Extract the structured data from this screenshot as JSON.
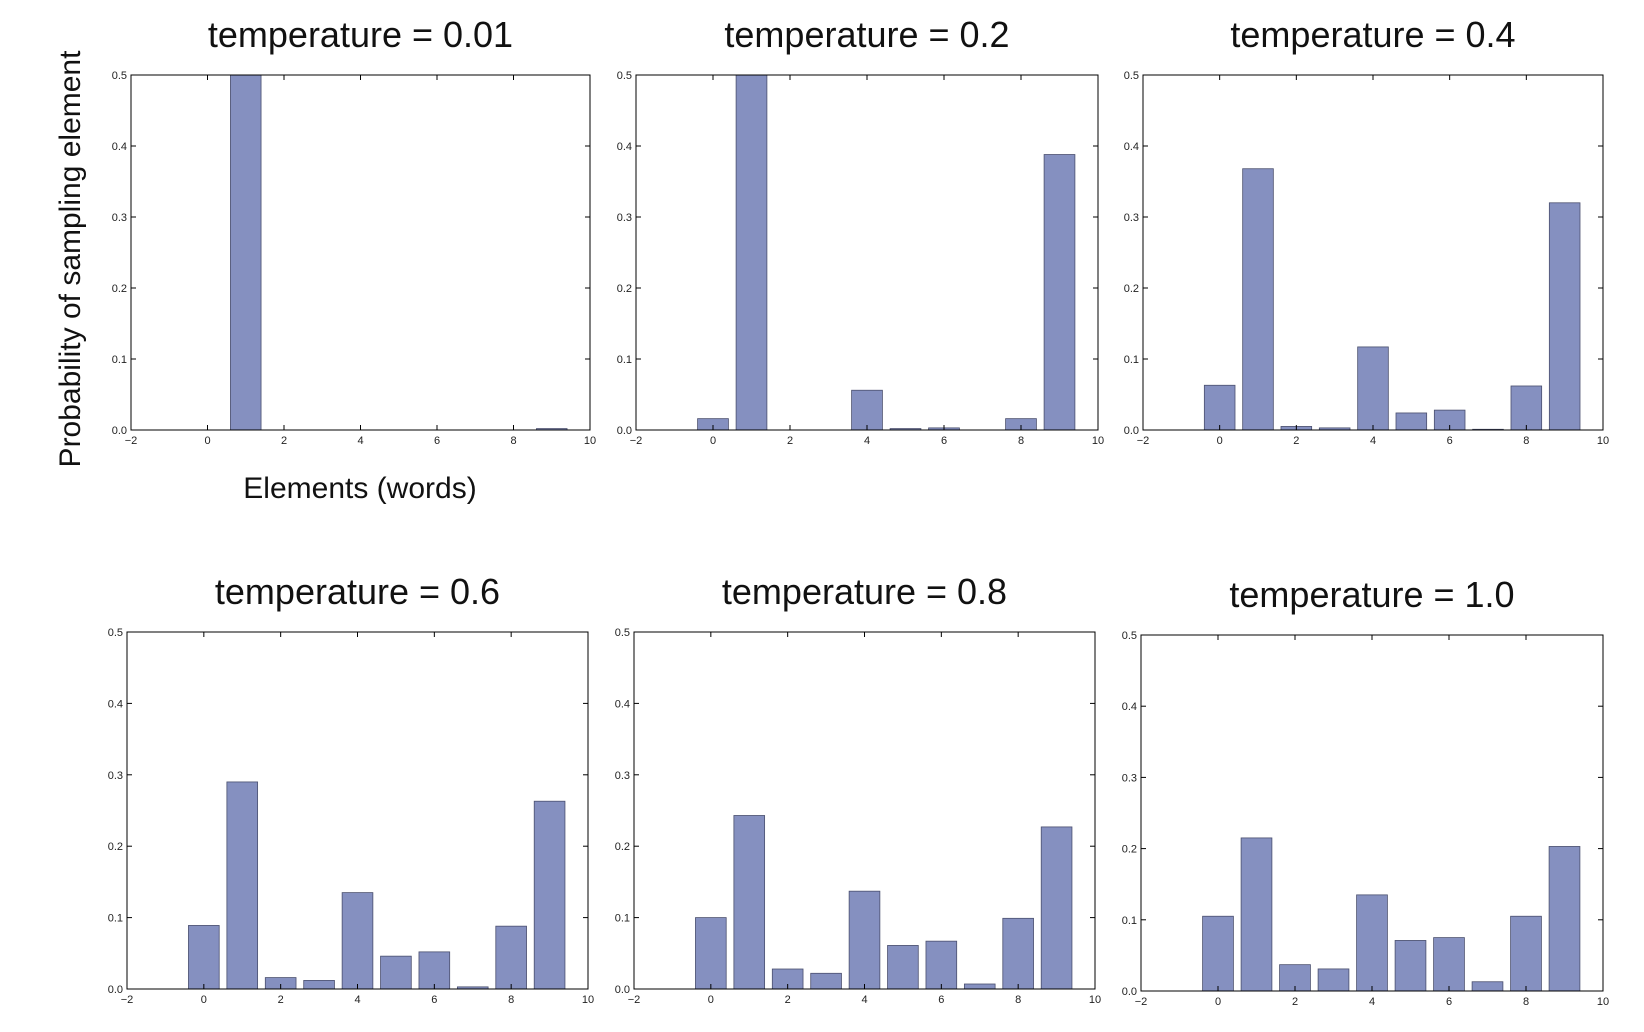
{
  "figure": {
    "ylabel": "Probability of sampling element",
    "xlabel": "Elements (words)",
    "bar_color": "#8590c0"
  },
  "chart_data": [
    {
      "type": "bar",
      "title": "temperature = 0.01",
      "x": [
        0,
        1,
        2,
        3,
        4,
        5,
        6,
        7,
        8,
        9
      ],
      "values": [
        0.0,
        0.5,
        0.0,
        0.0,
        0.0,
        0.0,
        0.0,
        0.0,
        0.0,
        0.002
      ],
      "xlim": [
        -2,
        10
      ],
      "ylim": [
        0,
        0.5
      ],
      "xticks": [
        "−2",
        "0",
        "2",
        "4",
        "6",
        "8",
        "10"
      ],
      "yticks": [
        "0.0",
        "0.1",
        "0.2",
        "0.3",
        "0.4",
        "0.5"
      ],
      "grid": false
    },
    {
      "type": "bar",
      "title": "temperature = 0.2",
      "x": [
        0,
        1,
        2,
        3,
        4,
        5,
        6,
        7,
        8,
        9
      ],
      "values": [
        0.016,
        0.5,
        0.0,
        0.0,
        0.056,
        0.002,
        0.003,
        0.0,
        0.016,
        0.388
      ],
      "xlim": [
        -2,
        10
      ],
      "ylim": [
        0,
        0.5
      ],
      "xticks": [
        "−2",
        "0",
        "2",
        "4",
        "6",
        "8",
        "10"
      ],
      "yticks": [
        "0.0",
        "0.1",
        "0.2",
        "0.3",
        "0.4",
        "0.5"
      ],
      "grid": false
    },
    {
      "type": "bar",
      "title": "temperature = 0.4",
      "x": [
        0,
        1,
        2,
        3,
        4,
        5,
        6,
        7,
        8,
        9
      ],
      "values": [
        0.063,
        0.368,
        0.005,
        0.003,
        0.117,
        0.024,
        0.028,
        0.001,
        0.062,
        0.32
      ],
      "xlim": [
        -2,
        10
      ],
      "ylim": [
        0,
        0.5
      ],
      "xticks": [
        "−2",
        "0",
        "2",
        "4",
        "6",
        "8",
        "10"
      ],
      "yticks": [
        "0.0",
        "0.1",
        "0.2",
        "0.3",
        "0.4",
        "0.5"
      ],
      "grid": false
    },
    {
      "type": "bar",
      "title": "temperature = 0.6",
      "x": [
        0,
        1,
        2,
        3,
        4,
        5,
        6,
        7,
        8,
        9
      ],
      "values": [
        0.089,
        0.29,
        0.016,
        0.012,
        0.135,
        0.046,
        0.052,
        0.003,
        0.088,
        0.263
      ],
      "xlim": [
        -2,
        10
      ],
      "ylim": [
        0,
        0.5
      ],
      "xticks": [
        "−2",
        "0",
        "2",
        "4",
        "6",
        "8",
        "10"
      ],
      "yticks": [
        "0.0",
        "0.1",
        "0.2",
        "0.3",
        "0.4",
        "0.5"
      ],
      "grid": false
    },
    {
      "type": "bar",
      "title": "temperature = 0.8",
      "x": [
        0,
        1,
        2,
        3,
        4,
        5,
        6,
        7,
        8,
        9
      ],
      "values": [
        0.1,
        0.243,
        0.028,
        0.022,
        0.137,
        0.061,
        0.067,
        0.007,
        0.099,
        0.227
      ],
      "xlim": [
        -2,
        10
      ],
      "ylim": [
        0,
        0.5
      ],
      "xticks": [
        "−2",
        "0",
        "2",
        "4",
        "6",
        "8",
        "10"
      ],
      "yticks": [
        "0.0",
        "0.1",
        "0.2",
        "0.3",
        "0.4",
        "0.5"
      ],
      "grid": false
    },
    {
      "type": "bar",
      "title": "temperature = 1.0",
      "x": [
        0,
        1,
        2,
        3,
        4,
        5,
        6,
        7,
        8,
        9
      ],
      "values": [
        0.105,
        0.215,
        0.037,
        0.031,
        0.135,
        0.071,
        0.075,
        0.013,
        0.105,
        0.203
      ],
      "xlim": [
        -2,
        10
      ],
      "ylim": [
        0,
        0.5
      ],
      "xticks": [
        "−2",
        "0",
        "2",
        "4",
        "6",
        "8",
        "10"
      ],
      "yticks": [
        "0.0",
        "0.1",
        "0.2",
        "0.3",
        "0.4",
        "0.5"
      ],
      "grid": false
    }
  ]
}
